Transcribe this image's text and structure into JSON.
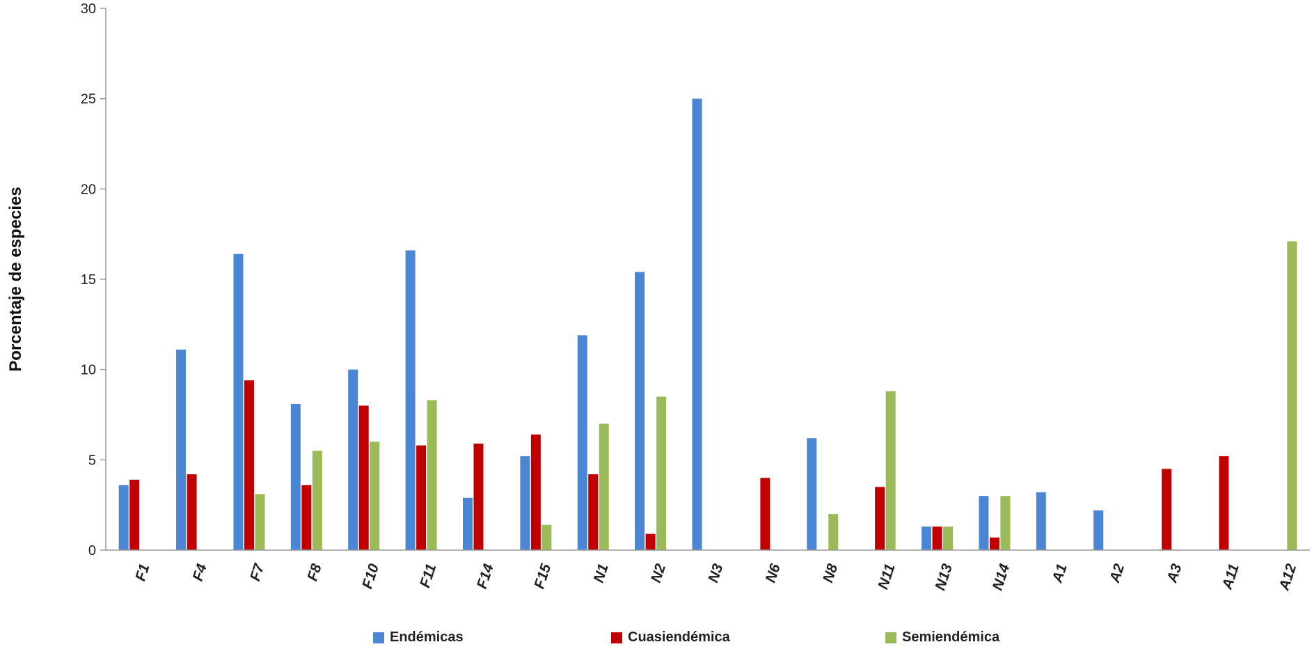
{
  "chart_data": {
    "type": "bar",
    "title": "",
    "xlabel": "",
    "ylabel": "Porcentaje de especies",
    "ylim": [
      0,
      30
    ],
    "yticks": [
      0,
      5,
      10,
      15,
      20,
      25,
      30
    ],
    "grid": false,
    "legend_position": "bottom",
    "categories": [
      "F1",
      "F4",
      "F7",
      "F8",
      "F10",
      "F11",
      "F14",
      "F15",
      "N1",
      "N2",
      "N3",
      "N6",
      "N8",
      "N11",
      "N13",
      "N14",
      "A1",
      "A2",
      "A3",
      "A11",
      "A12"
    ],
    "series": [
      {
        "name": "Endémicas",
        "color": "#4a86d4",
        "values": [
          3.6,
          11.1,
          16.4,
          8.1,
          10.0,
          16.6,
          2.9,
          5.2,
          11.9,
          15.4,
          25.0,
          0,
          6.2,
          0,
          1.3,
          3.0,
          3.2,
          2.2,
          0,
          0,
          0
        ]
      },
      {
        "name": "Cuasiendémica",
        "color": "#c00000",
        "values": [
          3.9,
          4.2,
          9.4,
          3.6,
          8.0,
          5.8,
          5.9,
          6.4,
          4.2,
          0.9,
          0,
          4.0,
          0,
          3.5,
          1.3,
          0.7,
          0,
          0,
          4.5,
          5.2,
          0
        ]
      },
      {
        "name": "Semiendémica",
        "color": "#9bbb59",
        "values": [
          0,
          0,
          3.1,
          5.5,
          6.0,
          8.3,
          0,
          1.4,
          7.0,
          8.5,
          0,
          0,
          2.0,
          8.8,
          1.3,
          3.0,
          0,
          0,
          0,
          0,
          17.1
        ]
      }
    ]
  }
}
